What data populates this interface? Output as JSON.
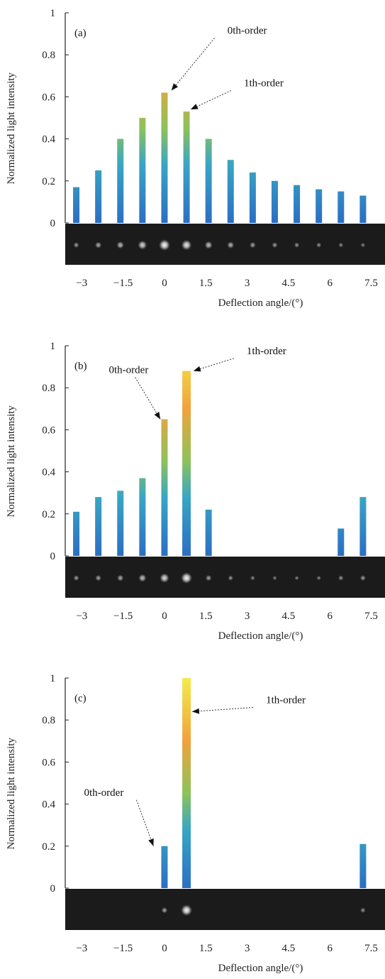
{
  "chart_data": [
    {
      "type": "bar",
      "panel_label": "(a)",
      "xlabel": "Deflection angle/(°)",
      "ylabel": "Normalized light intensity",
      "ylim": [
        0,
        1
      ],
      "xlim": [
        -3.6,
        8.0
      ],
      "x_ticks": [
        "−3",
        "−1.5",
        "0",
        "1.5",
        "3",
        "4.5",
        "6",
        "7.5"
      ],
      "x_tick_values": [
        -3,
        -1.5,
        0,
        1.5,
        3,
        4.5,
        6,
        7.5
      ],
      "y_ticks": [
        "0",
        "0.2",
        "0.4",
        "0.6",
        "0.8",
        "1"
      ],
      "y_tick_values": [
        0,
        0.2,
        0.4,
        0.6,
        0.8,
        1
      ],
      "peaks": {
        "x": [
          -3.2,
          -2.4,
          -1.6,
          -0.8,
          0,
          0.8,
          1.6,
          2.4,
          3.2,
          4.0,
          4.8,
          5.6,
          6.4,
          7.2
        ],
        "values": [
          0.17,
          0.25,
          0.4,
          0.5,
          0.62,
          0.53,
          0.4,
          0.3,
          0.24,
          0.2,
          0.18,
          0.16,
          0.15,
          0.13
        ]
      },
      "spots_brightness": [
        0.35,
        0.45,
        0.55,
        0.75,
        1.0,
        0.9,
        0.6,
        0.5,
        0.4,
        0.35,
        0.3,
        0.28,
        0.25,
        0.22
      ],
      "annotations": [
        {
          "text": "0th-order",
          "x": 3.0,
          "y": 0.9,
          "target_x": 0.25,
          "target_y": 0.63
        },
        {
          "text": "1th-order",
          "x": 3.6,
          "y": 0.65,
          "target_x": 0.95,
          "target_y": 0.54
        }
      ],
      "grid": false
    },
    {
      "type": "bar",
      "panel_label": "(b)",
      "xlabel": "Deflection angle/(°)",
      "ylabel": "Normalized light intensity",
      "ylim": [
        0,
        1
      ],
      "xlim": [
        -3.6,
        8.0
      ],
      "x_ticks": [
        "−3",
        "−1.5",
        "0",
        "1.5",
        "3",
        "4.5",
        "6",
        "7.5"
      ],
      "x_tick_values": [
        -3,
        -1.5,
        0,
        1.5,
        3,
        4.5,
        6,
        7.5
      ],
      "y_ticks": [
        "0",
        "0.2",
        "0.4",
        "0.6",
        "0.8",
        "1"
      ],
      "y_tick_values": [
        0,
        0.2,
        0.4,
        0.6,
        0.8,
        1
      ],
      "peaks": {
        "x": [
          -3.2,
          -2.4,
          -1.6,
          -0.8,
          0,
          0.8,
          1.6,
          6.4,
          7.2
        ],
        "values": [
          0.21,
          0.28,
          0.31,
          0.37,
          0.65,
          0.88,
          0.22,
          0.13,
          0.28
        ]
      },
      "spots_brightness": [
        0.35,
        0.4,
        0.45,
        0.6,
        0.8,
        1.0,
        0.4,
        0.3,
        0.25,
        0.2,
        0.2,
        0.22,
        0.3,
        0.35
      ],
      "annotations": [
        {
          "text": "1th-order",
          "x": 3.7,
          "y": 0.96,
          "target_x": 1.05,
          "target_y": 0.88
        },
        {
          "text": "0th-order",
          "x": -1.3,
          "y": 0.87,
          "target_x": -0.15,
          "target_y": 0.65
        }
      ],
      "grid": false
    },
    {
      "type": "bar",
      "panel_label": "(c)",
      "xlabel": "Deflection angle/(°)",
      "ylabel": "Normalized light intensity",
      "ylim": [
        0,
        1
      ],
      "xlim": [
        -3.6,
        8.0
      ],
      "x_ticks": [
        "−3",
        "−1.5",
        "0",
        "1.5",
        "3",
        "4.5",
        "6",
        "7.5"
      ],
      "x_tick_values": [
        -3,
        -1.5,
        0,
        1.5,
        3,
        4.5,
        6,
        7.5
      ],
      "y_ticks": [
        "0",
        "0.2",
        "0.4",
        "0.6",
        "0.8",
        "1"
      ],
      "y_tick_values": [
        0,
        0.2,
        0.4,
        0.6,
        0.8,
        1
      ],
      "peaks": {
        "x": [
          0,
          0.8,
          7.2
        ],
        "values": [
          0.2,
          1.0,
          0.21
        ]
      },
      "spots_brightness": [
        0,
        0,
        0,
        0,
        0.4,
        1.0,
        0,
        0,
        0,
        0,
        0,
        0,
        0,
        0.3
      ],
      "annotations": [
        {
          "text": "1th-order",
          "x": 4.4,
          "y": 0.88,
          "target_x": 1.0,
          "target_y": 0.84
        },
        {
          "text": "0th-order",
          "x": -2.2,
          "y": 0.44,
          "target_x": -0.4,
          "target_y": 0.2
        }
      ],
      "grid": false
    }
  ]
}
